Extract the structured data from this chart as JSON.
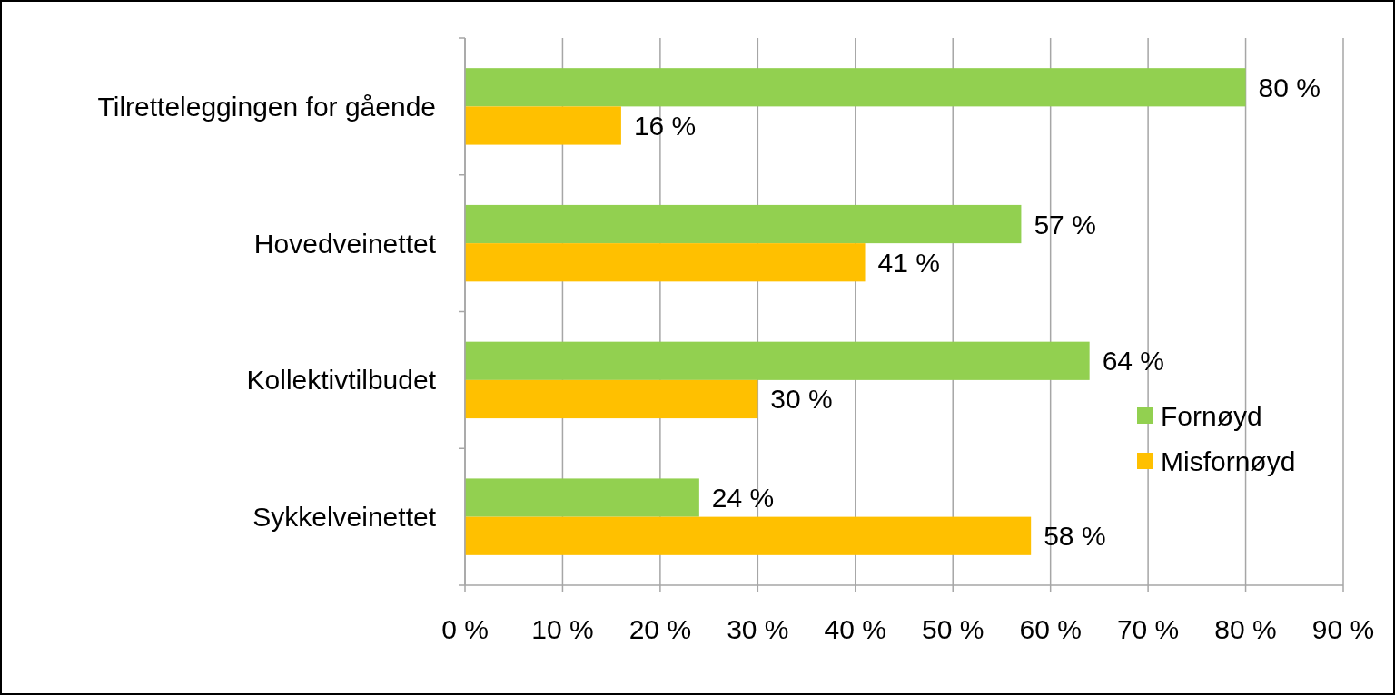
{
  "chart_data": {
    "type": "bar",
    "orientation": "horizontal",
    "categories": [
      "Tilretteleggingen for gående",
      "Hovedveinettet",
      "Kollektivtilbudet",
      "Sykkelveinettet"
    ],
    "series": [
      {
        "name": "Fornøyd",
        "color": "#92d050",
        "values": [
          80,
          57,
          64,
          24
        ],
        "value_labels": [
          "80 %",
          "57 %",
          "64 %",
          "24 %"
        ]
      },
      {
        "name": "Misfornøyd",
        "color": "#ffc000",
        "values": [
          16,
          41,
          30,
          58
        ],
        "value_labels": [
          "16 %",
          "41 %",
          "30 %",
          "58 %"
        ]
      }
    ],
    "xlim": [
      0,
      90
    ],
    "xticks": [
      {
        "value": 0,
        "label": "0 %"
      },
      {
        "value": 10,
        "label": "10 %"
      },
      {
        "value": 20,
        "label": "20 %"
      },
      {
        "value": 30,
        "label": "30 %"
      },
      {
        "value": 40,
        "label": "40 %"
      },
      {
        "value": 50,
        "label": "50 %"
      },
      {
        "value": 60,
        "label": "60 %"
      },
      {
        "value": 70,
        "label": "70 %"
      },
      {
        "value": 80,
        "label": "80 %"
      },
      {
        "value": 90,
        "label": "90 %"
      }
    ],
    "grid": "x",
    "legend": "right"
  }
}
